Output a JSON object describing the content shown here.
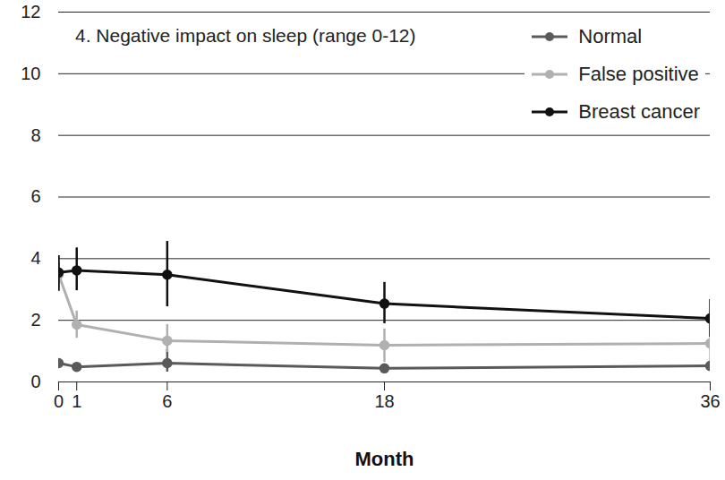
{
  "chart_data": {
    "type": "line",
    "title": "4. Negative impact on sleep (range 0-12)",
    "x_label": "Month",
    "x": [
      0,
      1,
      6,
      18,
      36
    ],
    "xlim": [
      0,
      36
    ],
    "xticks": [
      0,
      1,
      6,
      18,
      36
    ],
    "ylim": [
      0,
      12
    ],
    "yticks": [
      0,
      2,
      4,
      6,
      8,
      10,
      12
    ],
    "grid": true,
    "legend": "top right",
    "marker": "circle",
    "series": [
      {
        "name": "Normal",
        "color": "#5a5a5a",
        "values": [
          0.61,
          0.49,
          0.61,
          0.44,
          0.52
        ],
        "error_low": [
          0.52,
          0.4,
          0.32,
          0.36,
          0.43
        ],
        "error_high": [
          0.7,
          0.58,
          1.05,
          0.52,
          0.61
        ]
      },
      {
        "name": "False positive",
        "color": "#b0b0b0",
        "values": [
          3.49,
          1.86,
          1.34,
          1.19,
          1.25
        ],
        "error_low": [
          3.05,
          1.42,
          0.96,
          0.64,
          0.67
        ],
        "error_high": [
          3.9,
          2.3,
          1.86,
          1.72,
          1.8
        ]
      },
      {
        "name": "Breast cancer",
        "color": "#111111",
        "values": [
          3.55,
          3.62,
          3.48,
          2.54,
          2.06
        ],
        "error_low": [
          2.94,
          2.96,
          2.44,
          1.89,
          1.45
        ],
        "error_high": [
          4.1,
          4.35,
          4.56,
          3.23,
          2.67
        ]
      }
    ]
  }
}
